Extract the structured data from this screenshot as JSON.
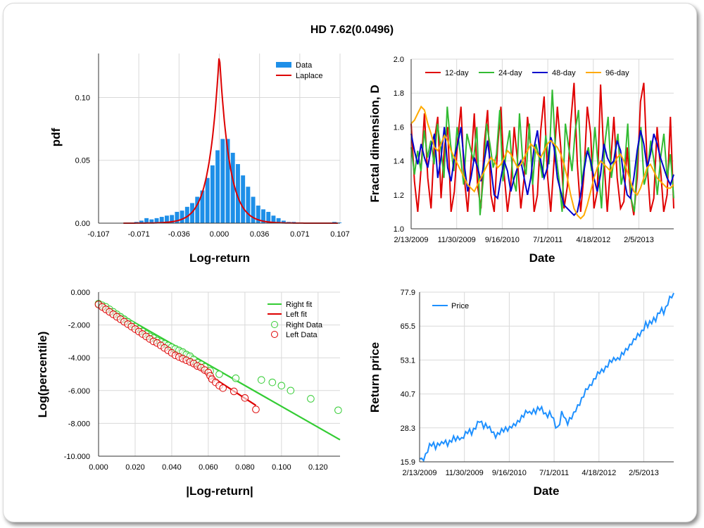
{
  "title": "HD 7.62(0.0496)",
  "chart_data": [
    {
      "type": "bar",
      "id": "histogram",
      "xlabel": "Log-return",
      "ylabel": "pdf",
      "xlim": [
        -0.107,
        0.107
      ],
      "ylim": [
        0,
        0.135
      ],
      "xticks": [
        "-0.107",
        "-0.071",
        "-0.036",
        "0.000",
        "0.036",
        "0.071",
        "0.107"
      ],
      "yticks": [
        "0.00",
        "0.05",
        "0.10"
      ],
      "legend": [
        "Data",
        "Laplace"
      ],
      "bin_width": 0.0045,
      "bin_centers": [
        -0.0825,
        -0.078,
        -0.0735,
        -0.069,
        -0.0645,
        -0.06,
        -0.0555,
        -0.051,
        -0.0465,
        -0.042,
        -0.0375,
        -0.033,
        -0.0285,
        -0.024,
        -0.0195,
        -0.015,
        -0.0105,
        -0.006,
        -0.0015,
        0.003,
        0.0075,
        0.012,
        0.0165,
        0.021,
        0.0255,
        0.03,
        0.0345,
        0.039,
        0.0435,
        0.048,
        0.0525,
        0.057,
        0.0615,
        0.066,
        0.0705,
        0.075,
        0.0795,
        0.084,
        0.0885,
        0.093,
        0.0975,
        0.102,
        0.1065
      ],
      "values": [
        0.0005,
        0.0005,
        0.001,
        0.002,
        0.004,
        0.003,
        0.004,
        0.005,
        0.006,
        0.0065,
        0.009,
        0.01,
        0.013,
        0.016,
        0.021,
        0.026,
        0.036,
        0.046,
        0.058,
        0.067,
        0.067,
        0.056,
        0.047,
        0.038,
        0.029,
        0.021,
        0.014,
        0.011,
        0.009,
        0.006,
        0.004,
        0.002,
        0.001,
        0.001,
        0.0005,
        0.0005,
        0.0005,
        0.0005,
        0.0005,
        0.0005,
        0.0005,
        0.001,
        0.0005
      ],
      "laplace": {
        "mu": 0.0,
        "b": 0.0088,
        "peak": 0.1355
      }
    },
    {
      "type": "line",
      "id": "fractal",
      "xlabel": "Date",
      "ylabel": "Fractal dimension, D",
      "ylim": [
        1.0,
        2.0
      ],
      "yticks": [
        "1.0",
        "1.2",
        "1.4",
        "1.6",
        "1.8",
        "2.0"
      ],
      "xticks": [
        "2/13/2009",
        "11/30/2009",
        "9/16/2010",
        "7/1/2011",
        "4/18/2012",
        "2/5/2013"
      ],
      "series": [
        {
          "name": "12-day",
          "color": "#e00000",
          "values": [
            1.62,
            1.28,
            1.1,
            1.36,
            1.68,
            1.3,
            1.12,
            1.52,
            1.66,
            1.18,
            1.48,
            1.6,
            1.1,
            1.22,
            1.52,
            1.72,
            1.3,
            1.1,
            1.38,
            1.68,
            1.25,
            1.12,
            1.5,
            1.7,
            1.2,
            1.1,
            1.48,
            1.72,
            1.32,
            1.1,
            1.26,
            1.6,
            1.4,
            1.12,
            1.3,
            1.66,
            1.48,
            1.1,
            1.2,
            1.58,
            1.78,
            1.32,
            1.1,
            1.4,
            1.72,
            1.48,
            1.12,
            1.25,
            1.62,
            1.86,
            1.38,
            1.1,
            1.32,
            1.72,
            1.56,
            1.12,
            1.22,
            1.85,
            1.42,
            1.1,
            1.38,
            1.66,
            1.3,
            1.12,
            1.16,
            1.48,
            1.2,
            1.08,
            1.3,
            1.75,
            1.86,
            1.38,
            1.1,
            1.18,
            1.6,
            1.36,
            1.1,
            1.2,
            1.66,
            1.12
          ]
        },
        {
          "name": "24-day",
          "color": "#33bb33",
          "values": [
            1.48,
            1.32,
            1.46,
            1.34,
            1.58,
            1.42,
            1.52,
            1.38,
            1.62,
            1.48,
            1.3,
            1.72,
            1.5,
            1.34,
            1.6,
            1.44,
            1.26,
            1.56,
            1.48,
            1.4,
            1.6,
            1.08,
            1.3,
            1.62,
            1.5,
            1.36,
            1.44,
            1.7,
            1.28,
            1.46,
            1.58,
            1.3,
            1.22,
            1.68,
            1.4,
            1.32,
            1.62,
            1.26,
            1.5,
            1.42,
            1.3,
            1.55,
            1.38,
            1.82,
            1.46,
            1.3,
            1.1,
            1.62,
            1.48,
            1.34,
            1.58,
            1.7,
            1.26,
            1.42,
            1.48,
            1.34,
            1.6,
            1.36,
            1.12,
            1.5,
            1.66,
            1.3,
            1.44,
            1.56,
            1.26,
            1.36,
            1.62,
            1.18,
            1.1,
            1.44,
            1.6,
            1.26,
            1.34,
            1.52,
            1.4,
            1.2,
            1.42,
            1.56,
            1.3,
            1.44,
            1.18
          ]
        },
        {
          "name": "48-day",
          "color": "#0000cc",
          "values": [
            1.56,
            1.46,
            1.38,
            1.5,
            1.42,
            1.36,
            1.48,
            1.56,
            1.3,
            1.42,
            1.6,
            1.36,
            1.28,
            1.42,
            1.5,
            1.6,
            1.38,
            1.22,
            1.3,
            1.42,
            1.36,
            1.28,
            1.4,
            1.52,
            1.36,
            1.2,
            1.18,
            1.3,
            1.4,
            1.34,
            1.22,
            1.3,
            1.36,
            1.4,
            1.3,
            1.2,
            1.3,
            1.48,
            1.58,
            1.4,
            1.3,
            1.36,
            1.54,
            1.48,
            1.3,
            1.22,
            1.14,
            1.12,
            1.1,
            1.08,
            1.1,
            1.2,
            1.34,
            1.46,
            1.4,
            1.3,
            1.22,
            1.32,
            1.5,
            1.42,
            1.38,
            1.4,
            1.52,
            1.46,
            1.3,
            1.2,
            1.18,
            1.3,
            1.46,
            1.58,
            1.5,
            1.36,
            1.44,
            1.56,
            1.5,
            1.42,
            1.36,
            1.3,
            1.26,
            1.32
          ]
        },
        {
          "name": "96-day",
          "color": "#ffaa00",
          "values": [
            1.62,
            1.64,
            1.68,
            1.72,
            1.7,
            1.62,
            1.56,
            1.48,
            1.46,
            1.5,
            1.55,
            1.52,
            1.46,
            1.42,
            1.38,
            1.34,
            1.3,
            1.26,
            1.24,
            1.22,
            1.26,
            1.3,
            1.34,
            1.38,
            1.42,
            1.4,
            1.36,
            1.38,
            1.42,
            1.46,
            1.44,
            1.4,
            1.36,
            1.38,
            1.42,
            1.46,
            1.5,
            1.48,
            1.44,
            1.42,
            1.46,
            1.5,
            1.52,
            1.5,
            1.48,
            1.44,
            1.38,
            1.3,
            1.2,
            1.12,
            1.08,
            1.06,
            1.08,
            1.14,
            1.22,
            1.3,
            1.36,
            1.4,
            1.38,
            1.36,
            1.34,
            1.38,
            1.42,
            1.44,
            1.4,
            1.34,
            1.28,
            1.22,
            1.2,
            1.24,
            1.3,
            1.36,
            1.38,
            1.34,
            1.3,
            1.28,
            1.26,
            1.24,
            1.24,
            1.26
          ]
        }
      ]
    },
    {
      "type": "scatter",
      "id": "tails",
      "xlabel": "|Log-return|",
      "ylabel": "Log(percentile)",
      "xlim": [
        0.0,
        0.132
      ],
      "ylim": [
        -10.0,
        0.0
      ],
      "xticks": [
        "0.000",
        "0.020",
        "0.040",
        "0.060",
        "0.080",
        "0.100",
        "0.120"
      ],
      "yticks": [
        "0.000",
        "-2.000",
        "-4.000",
        "-6.000",
        "-8.000",
        "-10.000"
      ],
      "legend": [
        "Right fit",
        "Left fit",
        "Right Data",
        "Left Data"
      ],
      "right_fit": {
        "color": "#33cc33",
        "x": [
          0.0,
          0.132
        ],
        "y": [
          -0.6,
          -9.0
        ]
      },
      "left_fit": {
        "color": "#dd0000",
        "x": [
          0.0,
          0.086
        ],
        "y": [
          -0.7,
          -6.9
        ]
      },
      "right_data": {
        "color": "#33cc33",
        "x": [
          0.0,
          0.002,
          0.004,
          0.006,
          0.008,
          0.01,
          0.012,
          0.014,
          0.016,
          0.018,
          0.02,
          0.022,
          0.024,
          0.026,
          0.028,
          0.03,
          0.032,
          0.034,
          0.036,
          0.038,
          0.04,
          0.042,
          0.044,
          0.046,
          0.048,
          0.05,
          0.052,
          0.054,
          0.056,
          0.058,
          0.061,
          0.066,
          0.075,
          0.089,
          0.095,
          0.1,
          0.105,
          0.116,
          0.131
        ],
        "y": [
          -0.7,
          -0.8,
          -0.9,
          -1.05,
          -1.2,
          -1.35,
          -1.5,
          -1.65,
          -1.8,
          -1.95,
          -2.1,
          -2.25,
          -2.4,
          -2.55,
          -2.7,
          -2.8,
          -2.95,
          -3.05,
          -3.15,
          -3.25,
          -3.35,
          -3.45,
          -3.55,
          -3.65,
          -3.8,
          -3.9,
          -4.1,
          -4.3,
          -4.4,
          -4.55,
          -4.8,
          -5.0,
          -5.25,
          -5.35,
          -5.5,
          -5.7,
          -6.0,
          -6.5,
          -7.2
        ]
      },
      "left_data": {
        "color": "#dd0000",
        "x": [
          0.0,
          0.002,
          0.004,
          0.006,
          0.008,
          0.01,
          0.012,
          0.014,
          0.016,
          0.018,
          0.02,
          0.022,
          0.024,
          0.026,
          0.028,
          0.03,
          0.032,
          0.034,
          0.036,
          0.038,
          0.04,
          0.042,
          0.044,
          0.046,
          0.048,
          0.05,
          0.052,
          0.054,
          0.056,
          0.058,
          0.06,
          0.061,
          0.062,
          0.064,
          0.066,
          0.068,
          0.074,
          0.08,
          0.086
        ],
        "y": [
          -0.75,
          -0.9,
          -1.05,
          -1.2,
          -1.35,
          -1.5,
          -1.65,
          -1.8,
          -1.95,
          -2.1,
          -2.25,
          -2.4,
          -2.55,
          -2.7,
          -2.85,
          -3.0,
          -3.1,
          -3.25,
          -3.4,
          -3.55,
          -3.7,
          -3.85,
          -3.95,
          -4.05,
          -4.15,
          -4.25,
          -4.35,
          -4.5,
          -4.6,
          -4.75,
          -4.9,
          -5.1,
          -5.3,
          -5.5,
          -5.7,
          -5.85,
          -6.05,
          -6.45,
          -7.15
        ]
      }
    },
    {
      "type": "line",
      "id": "price",
      "xlabel": "Date",
      "ylabel": "Return price",
      "ylim": [
        15.9,
        77.9
      ],
      "yticks": [
        "15.9",
        "28.3",
        "40.7",
        "53.1",
        "65.5",
        "77.9"
      ],
      "xticks": [
        "2/13/2009",
        "11/30/2009",
        "9/16/2010",
        "7/1/2011",
        "4/18/2012",
        "2/5/2013"
      ],
      "series": [
        {
          "name": "Price",
          "color": "#1e90ff",
          "values": [
            17.0,
            16.5,
            17.4,
            18.5,
            20.1,
            21.5,
            22.0,
            22.3,
            21.6,
            22.4,
            22.6,
            22.2,
            22.9,
            23.1,
            22.7,
            23.4,
            23.8,
            24.3,
            23.9,
            24.5,
            25.0,
            24.4,
            25.2,
            25.9,
            26.6,
            27.2,
            26.8,
            27.8,
            28.6,
            29.6,
            30.7,
            30.0,
            29.2,
            29.6,
            28.9,
            27.8,
            27.0,
            26.1,
            25.7,
            26.2,
            26.6,
            27.0,
            27.2,
            27.9,
            28.2,
            28.5,
            29.0,
            28.8,
            29.4,
            30.3,
            31.5,
            32.5,
            32.9,
            33.6,
            34.1,
            33.6,
            34.4,
            34.8,
            34.2,
            34.9,
            35.1,
            35.3,
            34.5,
            33.4,
            32.8,
            33.3,
            32.6,
            31.2,
            29.3,
            28.4,
            30.2,
            33.4,
            32.7,
            31.0,
            30.5,
            31.7,
            32.3,
            33.0,
            34.6,
            36.0,
            37.6,
            39.0,
            40.3,
            41.5,
            42.7,
            43.4,
            44.9,
            45.9,
            46.9,
            47.7,
            48.5,
            49.1,
            49.8,
            50.5,
            51.2,
            52.0,
            52.6,
            53.3,
            54.0,
            53.6,
            53.9,
            54.8,
            55.4,
            56.6,
            57.8,
            58.5,
            59.4,
            59.8,
            60.9,
            62.1,
            62.9,
            63.6,
            64.6,
            66.0,
            65.4,
            66.7,
            67.4,
            68.3,
            67.9,
            69.2,
            70.5,
            71.5,
            70.9,
            72.2,
            73.9,
            75.3,
            76.2,
            77.6
          ]
        }
      ]
    }
  ]
}
